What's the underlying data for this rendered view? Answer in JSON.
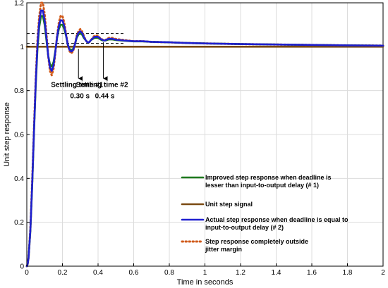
{
  "chart_data": {
    "type": "line",
    "title": "",
    "xlabel": "Time in seconds",
    "ylabel": "Unit step response",
    "xlim": [
      0,
      2
    ],
    "ylim": [
      0,
      1.2
    ],
    "xticks": [
      0,
      0.2,
      0.4,
      0.6,
      0.8,
      1,
      1.2,
      1.4,
      1.6,
      1.8,
      2
    ],
    "yticks": [
      0,
      0.2,
      0.4,
      0.6,
      0.8,
      1,
      1.2
    ],
    "xtick_labels": [
      "0",
      "0.2",
      "0.4",
      "0.6",
      "0.8",
      "1",
      "1.2",
      "1.4",
      "1.6",
      "1.8",
      "2"
    ],
    "ytick_labels": [
      "0",
      "0.2",
      "0.4",
      "0.6",
      "0.8",
      "1",
      "1.2"
    ],
    "grid": true,
    "legend_position": "lower-right",
    "series": [
      {
        "name": "Unit step signal",
        "color": "#7a4a12",
        "style": "solid",
        "x": [
          0,
          2
        ],
        "y": [
          1.0,
          1.0
        ]
      },
      {
        "name": "Step response completely outside jitter margin",
        "color": "#d05a1a",
        "style": "dotted",
        "x": [
          0,
          0.005,
          0.01,
          0.02,
          0.03,
          0.04,
          0.05,
          0.06,
          0.07,
          0.08,
          0.09,
          0.1,
          0.11,
          0.12,
          0.13,
          0.14,
          0.15,
          0.16,
          0.17,
          0.18,
          0.19,
          0.2,
          0.21,
          0.22,
          0.23,
          0.24,
          0.25,
          0.26,
          0.27,
          0.28,
          0.29,
          0.3,
          0.31,
          0.32,
          0.33,
          0.34,
          0.35,
          0.36,
          0.37,
          0.38,
          0.39,
          0.4,
          0.41,
          0.42,
          0.43,
          0.44,
          0.45,
          0.46,
          0.47,
          0.48,
          0.5,
          0.55,
          0.6,
          0.65,
          0.7,
          0.8,
          0.9,
          1.0,
          1.2,
          1.4,
          1.6,
          1.8,
          2.0
        ],
        "y": [
          0,
          0.01,
          0.04,
          0.17,
          0.38,
          0.62,
          0.85,
          1.03,
          1.14,
          1.2,
          1.2,
          1.15,
          1.06,
          0.96,
          0.89,
          0.87,
          0.9,
          0.97,
          1.05,
          1.11,
          1.14,
          1.14,
          1.11,
          1.06,
          1.01,
          0.98,
          0.97,
          0.98,
          1.01,
          1.05,
          1.07,
          1.08,
          1.07,
          1.05,
          1.03,
          1.02,
          1.02,
          1.03,
          1.04,
          1.05,
          1.05,
          1.05,
          1.04,
          1.035,
          1.03,
          1.03,
          1.035,
          1.04,
          1.04,
          1.04,
          1.035,
          1.03,
          1.025,
          1.025,
          1.022,
          1.02,
          1.017,
          1.015,
          1.012,
          1.01,
          1.008,
          1.006,
          1.005
        ]
      },
      {
        "name": "Improved step response when deadline is lesser than input-to-output delay (# 1)",
        "color": "#1f7a1f",
        "style": "solid",
        "x": [
          0,
          0.005,
          0.01,
          0.02,
          0.03,
          0.04,
          0.05,
          0.06,
          0.07,
          0.08,
          0.09,
          0.1,
          0.11,
          0.12,
          0.13,
          0.14,
          0.15,
          0.16,
          0.17,
          0.18,
          0.19,
          0.2,
          0.21,
          0.22,
          0.23,
          0.24,
          0.25,
          0.26,
          0.27,
          0.28,
          0.29,
          0.3,
          0.31,
          0.32,
          0.33,
          0.34,
          0.35,
          0.36,
          0.37,
          0.38,
          0.39,
          0.4,
          0.41,
          0.42,
          0.43,
          0.44,
          0.45,
          0.46,
          0.47,
          0.48,
          0.5,
          0.55,
          0.6,
          0.65,
          0.7,
          0.8,
          0.9,
          1.0,
          1.2,
          1.4,
          1.6,
          1.8,
          2.0
        ],
        "y": [
          0,
          0.01,
          0.04,
          0.16,
          0.36,
          0.6,
          0.82,
          0.99,
          1.09,
          1.14,
          1.14,
          1.1,
          1.03,
          0.96,
          0.92,
          0.91,
          0.93,
          0.98,
          1.04,
          1.08,
          1.1,
          1.1,
          1.08,
          1.05,
          1.01,
          0.99,
          0.985,
          0.99,
          1.01,
          1.04,
          1.055,
          1.06,
          1.055,
          1.04,
          1.03,
          1.02,
          1.02,
          1.03,
          1.035,
          1.04,
          1.04,
          1.04,
          1.035,
          1.03,
          1.028,
          1.028,
          1.03,
          1.033,
          1.033,
          1.033,
          1.03,
          1.027,
          1.024,
          1.024,
          1.022,
          1.02,
          1.017,
          1.015,
          1.012,
          1.01,
          1.008,
          1.006,
          1.005
        ]
      },
      {
        "name": "Actual step response when deadline is equal to input-to-output delay (# 2)",
        "color": "#1f1fd0",
        "style": "solid",
        "x": [
          0,
          0.005,
          0.01,
          0.02,
          0.03,
          0.04,
          0.05,
          0.06,
          0.07,
          0.08,
          0.09,
          0.1,
          0.11,
          0.12,
          0.13,
          0.14,
          0.15,
          0.16,
          0.17,
          0.18,
          0.19,
          0.2,
          0.21,
          0.22,
          0.23,
          0.24,
          0.25,
          0.26,
          0.27,
          0.28,
          0.29,
          0.3,
          0.31,
          0.32,
          0.33,
          0.34,
          0.35,
          0.36,
          0.37,
          0.38,
          0.39,
          0.4,
          0.41,
          0.42,
          0.43,
          0.44,
          0.45,
          0.46,
          0.47,
          0.48,
          0.5,
          0.55,
          0.6,
          0.65,
          0.7,
          0.8,
          0.9,
          1.0,
          1.2,
          1.4,
          1.6,
          1.8,
          2.0
        ],
        "y": [
          0,
          0.01,
          0.04,
          0.165,
          0.37,
          0.61,
          0.835,
          1.01,
          1.115,
          1.165,
          1.165,
          1.12,
          1.045,
          0.96,
          0.905,
          0.89,
          0.915,
          0.975,
          1.045,
          1.095,
          1.12,
          1.12,
          1.095,
          1.055,
          1.01,
          0.985,
          0.978,
          0.985,
          1.01,
          1.045,
          1.063,
          1.07,
          1.063,
          1.045,
          1.03,
          1.02,
          1.02,
          1.03,
          1.038,
          1.045,
          1.045,
          1.045,
          1.038,
          1.033,
          1.029,
          1.029,
          1.033,
          1.036,
          1.036,
          1.036,
          1.032,
          1.028,
          1.025,
          1.025,
          1.022,
          1.02,
          1.017,
          1.015,
          1.012,
          1.01,
          1.008,
          1.006,
          1.005
        ]
      }
    ],
    "settling_bands": [
      {
        "name": "upper-band-1",
        "y": 1.06,
        "x": [
          0,
          0.55
        ]
      },
      {
        "name": "lower-band",
        "y": 1.015,
        "x": [
          0,
          0.55
        ]
      }
    ],
    "annotations": [
      {
        "text_line1": "Settling time #1",
        "text_line2": "0.30 s",
        "x": 0.29,
        "arrow_from_y": 0.99,
        "arrow_to_y": 0.855
      },
      {
        "text_line1": "Settling time #2",
        "text_line2": "0.44 s",
        "x": 0.43,
        "arrow_from_y": 1.02,
        "arrow_to_y": 0.855
      }
    ]
  }
}
